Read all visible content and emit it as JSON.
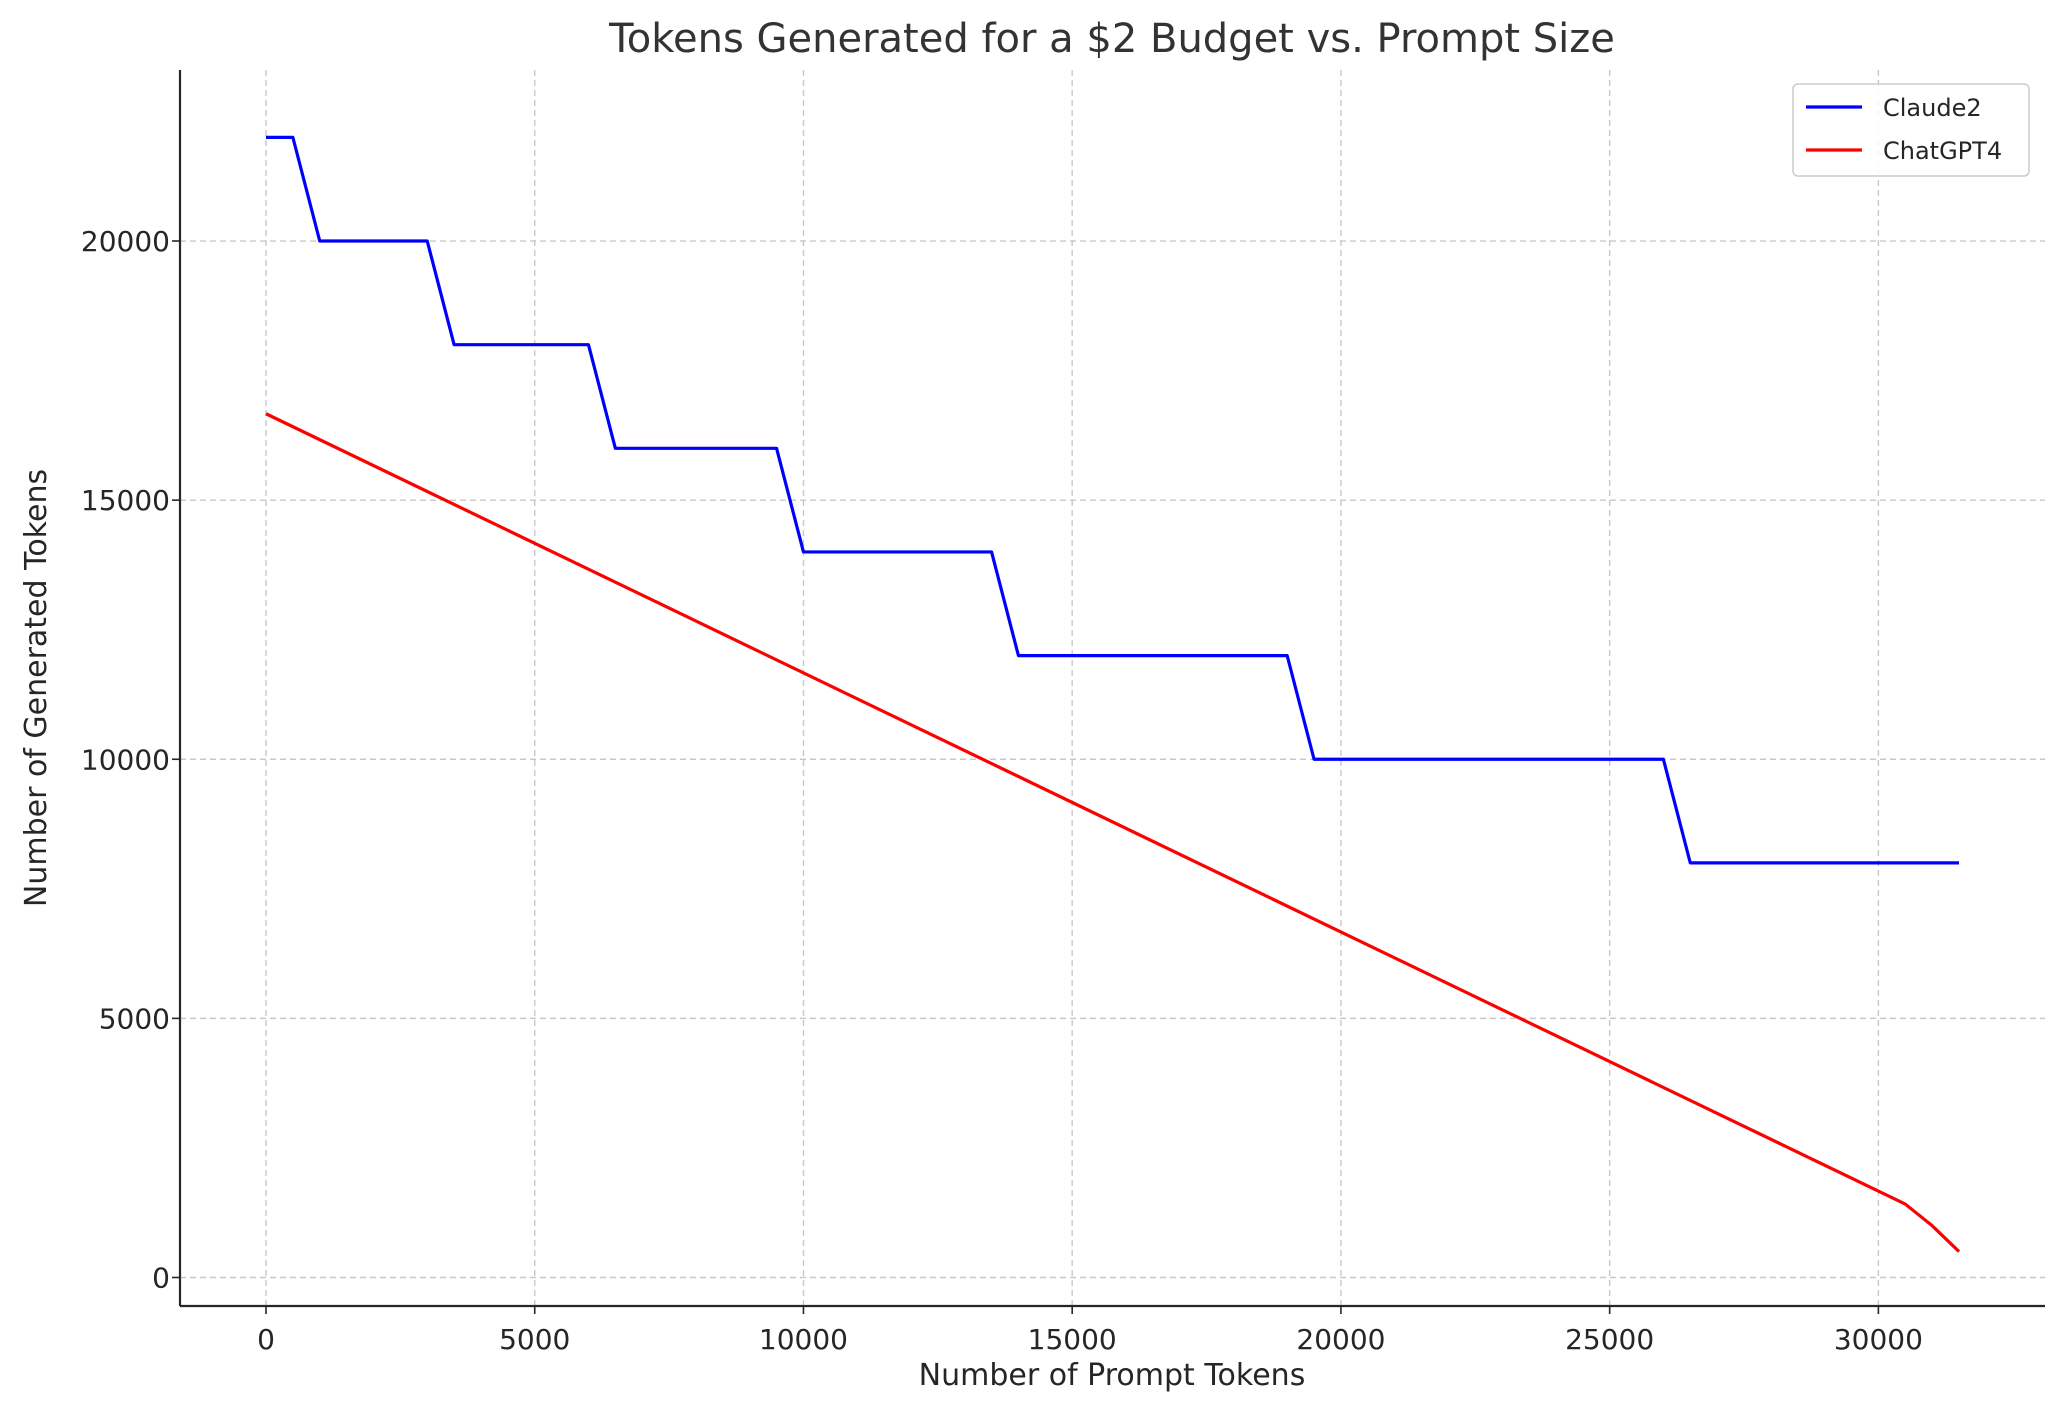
{
  "chart_data": {
    "type": "line",
    "title": "Tokens Generated for a $2 Budget vs. Prompt Size",
    "xlabel": "Number of Prompt Tokens",
    "ylabel": "Number of Generated Tokens",
    "xlim": [
      -1600,
      33100
    ],
    "ylim": [
      -550,
      23300
    ],
    "xticks": [
      0,
      5000,
      10000,
      15000,
      20000,
      25000,
      30000
    ],
    "yticks": [
      0,
      5000,
      10000,
      15000,
      20000
    ],
    "grid": true,
    "legend_position": "top-right",
    "series": [
      {
        "name": "Claude2",
        "color": "#0000ff",
        "x": [
          0,
          500,
          1000,
          3000,
          3500,
          6000,
          6500,
          9500,
          10000,
          13500,
          14000,
          19000,
          19500,
          26000,
          26500,
          31500
        ],
        "y": [
          22000,
          22000,
          20000,
          20000,
          18000,
          18000,
          16000,
          16000,
          14000,
          14000,
          12000,
          12000,
          10000,
          10000,
          8000,
          8000
        ]
      },
      {
        "name": "ChatGPT4",
        "color": "#ff0000",
        "x": [
          0,
          30500,
          31000,
          31500
        ],
        "y": [
          16667,
          1417,
          1000,
          500
        ]
      }
    ]
  }
}
